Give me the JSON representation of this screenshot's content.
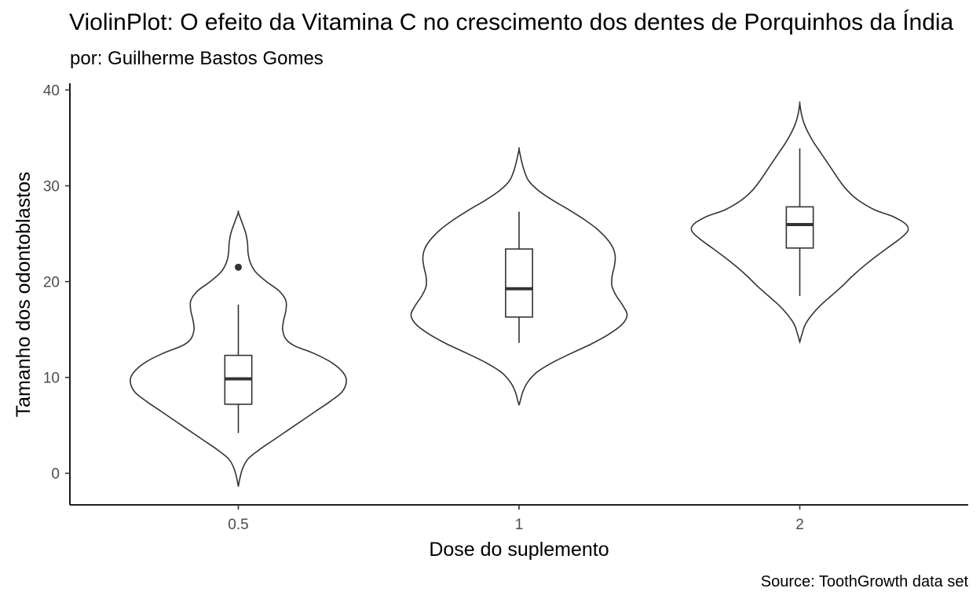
{
  "chart_data": {
    "type": "violin",
    "title": "ViolinPlot: O efeito da Vitamina C no crescimento dos dentes de Porquinhos da Índia",
    "subtitle": "por: Guilherme Bastos Gomes",
    "caption": "Source: ToothGrowth data set",
    "xlabel": "Dose do suplemento",
    "ylabel": "Tamanho dos odontoblastos",
    "categories": [
      "0.5",
      "1",
      "2"
    ],
    "y_ticks": [
      0,
      10,
      20,
      30,
      40
    ],
    "ylim": [
      -3.3,
      40.7
    ],
    "grid": false,
    "series": [
      {
        "category": "0.5",
        "violin_range": [
          -1.4,
          27.2
        ],
        "box": {
          "whisker_low": 4.2,
          "q1": 7.2,
          "median": 9.85,
          "q3": 12.3,
          "whisker_high": 17.6
        },
        "outliers": [
          21.5
        ],
        "density_profile": [
          [
            -1.4,
            0.0
          ],
          [
            -0.5,
            0.015
          ],
          [
            0.5,
            0.04
          ],
          [
            1.5,
            0.09
          ],
          [
            2.5,
            0.2
          ],
          [
            3.5,
            0.33
          ],
          [
            4.5,
            0.46
          ],
          [
            5.5,
            0.59
          ],
          [
            6.5,
            0.72
          ],
          [
            7.5,
            0.85
          ],
          [
            8.5,
            0.96
          ],
          [
            9.6,
            1.0
          ],
          [
            10.5,
            0.97
          ],
          [
            11.5,
            0.87
          ],
          [
            12.5,
            0.7
          ],
          [
            13.3,
            0.52
          ],
          [
            14.0,
            0.44
          ],
          [
            15.0,
            0.41
          ],
          [
            16.0,
            0.42
          ],
          [
            17.0,
            0.44
          ],
          [
            18.0,
            0.44
          ],
          [
            19.0,
            0.38
          ],
          [
            20.0,
            0.26
          ],
          [
            21.0,
            0.16
          ],
          [
            22.0,
            0.11
          ],
          [
            23.0,
            0.09
          ],
          [
            24.0,
            0.085
          ],
          [
            25.0,
            0.07
          ],
          [
            26.0,
            0.04
          ],
          [
            27.2,
            0.0
          ]
        ]
      },
      {
        "category": "1",
        "violin_range": [
          7.1,
          33.8
        ],
        "box": {
          "whisker_low": 13.6,
          "q1": 16.3,
          "median": 19.25,
          "q3": 23.4,
          "whisker_high": 27.3
        },
        "outliers": [],
        "density_profile": [
          [
            7.1,
            0.0
          ],
          [
            7.5,
            0.01
          ],
          [
            8.5,
            0.035
          ],
          [
            9.5,
            0.08
          ],
          [
            10.5,
            0.16
          ],
          [
            11.5,
            0.3
          ],
          [
            12.5,
            0.48
          ],
          [
            13.5,
            0.67
          ],
          [
            14.5,
            0.83
          ],
          [
            15.5,
            0.95
          ],
          [
            16.5,
            1.0
          ],
          [
            17.5,
            0.96
          ],
          [
            18.5,
            0.9
          ],
          [
            19.5,
            0.86
          ],
          [
            20.5,
            0.86
          ],
          [
            21.5,
            0.88
          ],
          [
            22.5,
            0.89
          ],
          [
            23.5,
            0.87
          ],
          [
            24.5,
            0.81
          ],
          [
            25.5,
            0.72
          ],
          [
            26.5,
            0.6
          ],
          [
            27.5,
            0.46
          ],
          [
            28.5,
            0.31
          ],
          [
            29.5,
            0.18
          ],
          [
            30.5,
            0.09
          ],
          [
            31.5,
            0.05
          ],
          [
            32.5,
            0.025
          ],
          [
            33.8,
            0.0
          ]
        ]
      },
      {
        "category": "2",
        "violin_range": [
          13.7,
          38.6
        ],
        "box": {
          "whisker_low": 18.5,
          "q1": 23.5,
          "median": 25.95,
          "q3": 27.8,
          "whisker_high": 33.9
        },
        "outliers": [],
        "density_profile": [
          [
            13.7,
            0.0
          ],
          [
            14.5,
            0.02
          ],
          [
            15.5,
            0.05
          ],
          [
            16.5,
            0.11
          ],
          [
            17.5,
            0.19
          ],
          [
            18.5,
            0.29
          ],
          [
            19.5,
            0.39
          ],
          [
            20.5,
            0.48
          ],
          [
            21.5,
            0.58
          ],
          [
            22.5,
            0.69
          ],
          [
            23.5,
            0.81
          ],
          [
            24.5,
            0.93
          ],
          [
            25.3,
            1.0
          ],
          [
            26.0,
            0.98
          ],
          [
            26.8,
            0.86
          ],
          [
            27.5,
            0.69
          ],
          [
            28.5,
            0.54
          ],
          [
            29.5,
            0.44
          ],
          [
            30.5,
            0.37
          ],
          [
            31.5,
            0.31
          ],
          [
            32.5,
            0.25
          ],
          [
            33.5,
            0.19
          ],
          [
            34.5,
            0.13
          ],
          [
            35.5,
            0.08
          ],
          [
            36.5,
            0.04
          ],
          [
            37.5,
            0.015
          ],
          [
            38.6,
            0.0
          ]
        ]
      }
    ]
  }
}
